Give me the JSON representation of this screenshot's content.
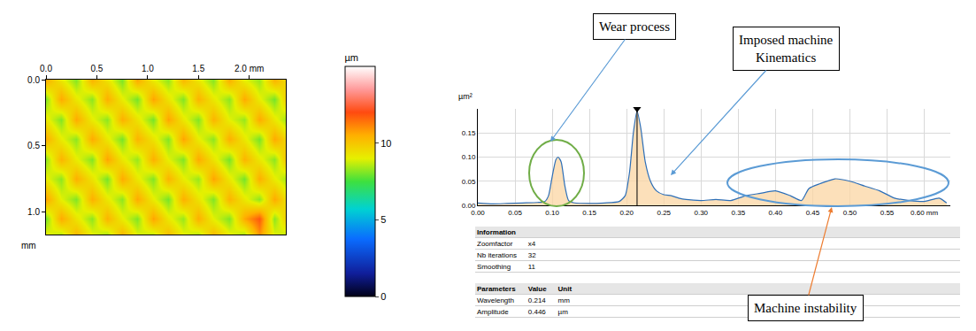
{
  "chart_data": [
    {
      "type": "heatmap",
      "x": [
        0,
        0.15,
        0.3,
        0.45,
        0.6,
        0.75,
        0.9,
        1.05,
        1.2,
        1.35,
        1.5,
        1.65,
        1.8,
        1.95,
        2.1,
        2.25,
        2.4
      ],
      "y": [
        0,
        0.15,
        0.3,
        0.45,
        0.6,
        0.75,
        0.9,
        1.05,
        1.2
      ],
      "z": [
        [
          10.6,
          9.2,
          8.1,
          10.5,
          9.3,
          8.0,
          10.7,
          9.1,
          8.2,
          10.4,
          9.2,
          8.1,
          10.6,
          9.0,
          8.3,
          10.5,
          9.2
        ],
        [
          8.1,
          10.6,
          9.2,
          8.2,
          10.5,
          9.1,
          8.0,
          10.7,
          9.3,
          8.1,
          10.4,
          9.2,
          8.2,
          10.6,
          9.1,
          8.0,
          10.5
        ],
        [
          9.2,
          8.1,
          10.6,
          9.1,
          8.2,
          10.5,
          9.3,
          8.0,
          10.7,
          9.2,
          8.1,
          10.4,
          9.0,
          8.3,
          10.6,
          9.2,
          8.1
        ],
        [
          10.5,
          9.1,
          8.2,
          10.6,
          9.2,
          8.0,
          10.4,
          9.3,
          8.1,
          10.7,
          9.1,
          8.2,
          10.5,
          9.2,
          8.0,
          10.6,
          9.3
        ],
        [
          8.2,
          10.4,
          9.1,
          8.1,
          10.7,
          9.2,
          8.3,
          10.5,
          9.0,
          8.1,
          10.6,
          9.3,
          8.0,
          10.4,
          9.2,
          8.2,
          10.7
        ],
        [
          9.1,
          8.2,
          10.5,
          9.3,
          8.0,
          10.6,
          9.2,
          8.1,
          10.4,
          9.1,
          8.3,
          10.7,
          9.2,
          8.0,
          10.5,
          9.1,
          8.2
        ],
        [
          10.7,
          9.0,
          8.1,
          10.5,
          9.2,
          8.2,
          10.6,
          9.1,
          8.0,
          10.5,
          9.3,
          8.1,
          10.4,
          9.2,
          8.2,
          10.6,
          9.0
        ],
        [
          8.0,
          10.6,
          9.3,
          8.2,
          10.4,
          9.1,
          8.1,
          10.7,
          9.2,
          8.3,
          10.5,
          9.0,
          8.1,
          10.6,
          11.8,
          8.2,
          10.4
        ],
        [
          9.3,
          8.1,
          10.5,
          9.2,
          8.0,
          10.6,
          9.1,
          8.2,
          10.4,
          9.2,
          8.1,
          10.5,
          9.3,
          8.0,
          10.7,
          9.1,
          8.2
        ]
      ],
      "xlim": [
        0,
        2.36
      ],
      "ylim": [
        1.17,
        0
      ],
      "xticks": [
        {
          "value": 0,
          "label": "0.0"
        },
        0.5,
        {
          "value": 1,
          "label": "1.0"
        },
        1.5,
        {
          "value": 2,
          "label": "2.0 mm"
        }
      ],
      "yticks": [
        {
          "value": 0,
          "label": "0.0"
        },
        0.5,
        {
          "value": 1,
          "label": "1.0"
        }
      ],
      "y_label": "mm",
      "colorbar": {
        "title": "µm",
        "range": [
          0,
          15
        ],
        "ticks": [
          0,
          5,
          10
        ]
      }
    },
    {
      "type": "line",
      "x": [
        0,
        0.02,
        0.04,
        0.06,
        0.08,
        0.09,
        0.095,
        0.1,
        0.105,
        0.108,
        0.112,
        0.117,
        0.122,
        0.13,
        0.15,
        0.17,
        0.19,
        0.198,
        0.204,
        0.209,
        0.214,
        0.219,
        0.225,
        0.232,
        0.24,
        0.25,
        0.26,
        0.27,
        0.28,
        0.3,
        0.32,
        0.34,
        0.36,
        0.38,
        0.4,
        0.42,
        0.435,
        0.445,
        0.46,
        0.48,
        0.5,
        0.52,
        0.54,
        0.56,
        0.58,
        0.6,
        0.62,
        0.63
      ],
      "values": [
        0.005,
        0.003,
        0.004,
        0.005,
        0.006,
        0.008,
        0.02,
        0.06,
        0.095,
        0.1,
        0.09,
        0.04,
        0.01,
        0.005,
        0.004,
        0.005,
        0.008,
        0.02,
        0.07,
        0.15,
        0.195,
        0.16,
        0.09,
        0.05,
        0.03,
        0.022,
        0.02,
        0.015,
        0.012,
        0.01,
        0.012,
        0.01,
        0.02,
        0.025,
        0.03,
        0.02,
        0.01,
        0.035,
        0.045,
        0.055,
        0.05,
        0.04,
        0.03,
        0.015,
        0.01,
        0.008,
        0.015,
        0.005
      ],
      "color": "#2e6fb7",
      "xlim": [
        0,
        0.635
      ],
      "ylim": [
        0,
        0.2
      ],
      "xticks": [
        {
          "value": 0,
          "label": "0.00"
        },
        0.05,
        {
          "value": 0.1,
          "label": "0.10"
        },
        0.15,
        {
          "value": 0.2,
          "label": "0.20"
        },
        0.25,
        {
          "value": 0.3,
          "label": "0.30"
        },
        0.35,
        {
          "value": 0.4,
          "label": "0.40"
        },
        0.45,
        {
          "value": 0.5,
          "label": "0.50"
        },
        0.55,
        {
          "value": 0.6,
          "label": "0.60 mm"
        }
      ],
      "yticks": [
        {
          "value": 0,
          "label": "0.00"
        },
        0.05,
        {
          "value": 0.1,
          "label": "0.10"
        },
        0.15
      ],
      "y_label": "µm²",
      "grid": true,
      "annotations": [
        {
          "text": [
            "Wear process"
          ]
        },
        {
          "text": [
            "Imposed machine",
            "Kinematics"
          ]
        },
        {
          "text": [
            "Machine instability"
          ]
        }
      ]
    }
  ],
  "table": {
    "sections": [
      {
        "header": [
          "Information"
        ],
        "rows": [
          [
            "Zoomfactor",
            "x4"
          ],
          [
            "Nb iterations",
            32
          ],
          [
            "Smoothing",
            11
          ]
        ]
      },
      {
        "header": [
          "Parameters",
          "Value",
          "Unit"
        ],
        "rows": [
          [
            "Wavelength",
            0.214,
            "mm"
          ],
          [
            "Amplitude",
            0.446,
            "µm"
          ]
        ]
      }
    ]
  }
}
